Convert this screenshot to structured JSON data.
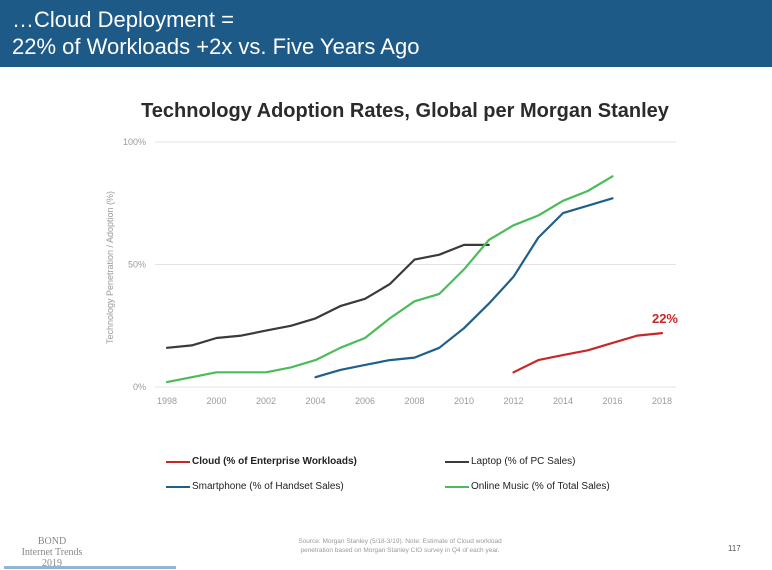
{
  "header": {
    "line1": "…Cloud Deployment =",
    "line2": "22% of Workloads +2x vs. Five Years Ago"
  },
  "chart_data": {
    "type": "line",
    "title": "Technology Adoption Rates, Global per Morgan Stanley",
    "xlabel": "",
    "ylabel": "Technology Penetration / Adoption (%)",
    "xlim": [
      1998,
      2018
    ],
    "ylim": [
      0,
      100
    ],
    "x_ticks": [
      "1998",
      "2000",
      "2002",
      "2004",
      "2006",
      "2008",
      "2010",
      "2012",
      "2014",
      "2016",
      "2018"
    ],
    "y_ticks": [
      {
        "value": 100,
        "label": "100%"
      },
      {
        "value": 50,
        "label": "50%"
      },
      {
        "value": 0,
        "label": "0%"
      }
    ],
    "grid": true,
    "annotation": {
      "text": "22%",
      "series": "Cloud (% of Enterprise Workloads)",
      "x": 2018,
      "y": 22,
      "color": "#c62828"
    },
    "series": [
      {
        "name": "Cloud (% of Enterprise Workloads)",
        "color": "#c62828",
        "x": [
          2012,
          2013,
          2014,
          2015,
          2016,
          2017,
          2018
        ],
        "values": [
          6,
          11,
          13,
          15,
          18,
          21,
          22
        ]
      },
      {
        "name": "Laptop (% of PC Sales)",
        "color": "#3a3a3a",
        "x": [
          1998,
          1999,
          2000,
          2001,
          2002,
          2003,
          2004,
          2005,
          2006,
          2007,
          2008,
          2009,
          2010,
          2011
        ],
        "values": [
          16,
          17,
          20,
          21,
          23,
          25,
          28,
          33,
          36,
          42,
          52,
          54,
          58,
          58
        ]
      },
      {
        "name": "Smartphone (% of Handset Sales)",
        "color": "#1f5f8b",
        "x": [
          2004,
          2005,
          2006,
          2007,
          2008,
          2009,
          2010,
          2011,
          2012,
          2013,
          2014,
          2015,
          2016
        ],
        "values": [
          4,
          7,
          9,
          11,
          12,
          16,
          24,
          34,
          45,
          61,
          71,
          74,
          77
        ]
      },
      {
        "name": "Online Music (% of Total Sales)",
        "color": "#4cbb5a",
        "x": [
          1998,
          1999,
          2000,
          2001,
          2002,
          2003,
          2004,
          2005,
          2006,
          2007,
          2008,
          2009,
          2010,
          2011,
          2012,
          2013,
          2014,
          2015,
          2016
        ],
        "values": [
          2,
          4,
          6,
          6,
          6,
          8,
          11,
          16,
          20,
          28,
          35,
          38,
          48,
          60,
          66,
          70,
          76,
          80,
          86
        ]
      }
    ]
  },
  "legend": [
    {
      "label": "Cloud (% of Enterprise Workloads)",
      "color": "#c62828"
    },
    {
      "label": "Laptop (% of PC Sales)",
      "color": "#3a3a3a"
    },
    {
      "label": "Smartphone (% of Handset Sales)",
      "color": "#1f5f8b"
    },
    {
      "label": "Online Music (% of Total Sales)",
      "color": "#4cbb5a"
    }
  ],
  "footer": {
    "logo_line1": "BOND",
    "logo_line2": "Internet Trends",
    "logo_line3": "2019",
    "source_line1": "Source: Morgan Stanley (5/18-3/19).  Note: Estimate of Cloud workload",
    "source_line2": "penetration based on Morgan Stanley CIO survey in Q4 of each year.",
    "page_number": "117"
  }
}
